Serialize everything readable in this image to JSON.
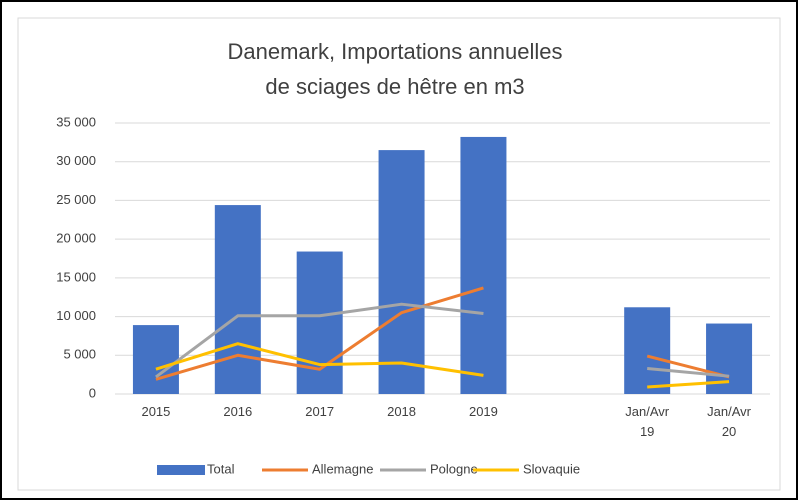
{
  "chart_data": {
    "type": "bar",
    "title": [
      "Danemark, Importations annuelles",
      "de sciages de hêtre en m3"
    ],
    "categories": [
      "2015",
      "2016",
      "2017",
      "2018",
      "2019",
      null,
      "Jan/Avr 19",
      "Jan/Avr 20"
    ],
    "series": [
      {
        "name": "Total",
        "type": "bar",
        "color": "#4472c4",
        "values": [
          8900,
          24400,
          18400,
          31500,
          33200,
          null,
          11200,
          9100
        ]
      },
      {
        "name": "Allemagne",
        "type": "line",
        "color": "#ed7d31",
        "values": [
          1900,
          5000,
          3200,
          10500,
          13700,
          null,
          4900,
          2200
        ]
      },
      {
        "name": "Pologne",
        "type": "line",
        "color": "#a5a5a5",
        "values": [
          2200,
          10100,
          10100,
          11600,
          10400,
          null,
          3300,
          2300
        ]
      },
      {
        "name": "Slovaquie",
        "type": "line",
        "color": "#ffc000",
        "values": [
          3200,
          6500,
          3800,
          4000,
          2400,
          null,
          900,
          1600
        ]
      }
    ],
    "ylim": [
      0,
      35000
    ],
    "yticks": [
      0,
      {
        "value": 5000,
        "label": "5 000"
      },
      {
        "value": 10000,
        "label": "10 000"
      },
      {
        "value": 15000,
        "label": "15 000"
      },
      {
        "value": 20000,
        "label": "20 000"
      },
      {
        "value": 25000,
        "label": "25 000"
      },
      {
        "value": 30000,
        "label": "30 000"
      },
      {
        "value": 35000,
        "label": "35 000"
      }
    ],
    "grid": true,
    "legend": "bottom"
  }
}
